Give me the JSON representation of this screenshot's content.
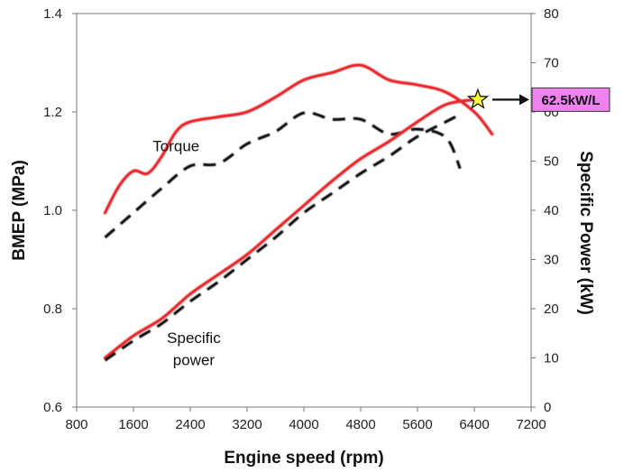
{
  "chart_data": {
    "type": "line",
    "title": "",
    "xlabel": "Engine speed  (rpm)",
    "ylabel": "BMEP (MPa)",
    "y2label": "Specific Power (kW)",
    "xlim": [
      800,
      7200
    ],
    "ylim": [
      0.6,
      1.4
    ],
    "y2lim": [
      0,
      80
    ],
    "grid": false,
    "x_ticks": [
      800,
      1600,
      2400,
      3200,
      4000,
      4800,
      5600,
      6400,
      7200
    ],
    "y_ticks": [
      0.6,
      0.8,
      1.0,
      1.2,
      1.4
    ],
    "y2_ticks": [
      0,
      10,
      20,
      30,
      40,
      50,
      60,
      70,
      80
    ],
    "series": [
      {
        "name": "Torque (red)",
        "axis": "left",
        "color": "#e8262a",
        "style": "solid",
        "x": [
          1200,
          1400,
          1600,
          1800,
          2000,
          2200,
          2400,
          2800,
          3200,
          3600,
          4000,
          4400,
          4800,
          5200,
          5600,
          6000,
          6400,
          6650
        ],
        "values": [
          0.995,
          1.05,
          1.08,
          1.075,
          1.11,
          1.16,
          1.18,
          1.19,
          1.2,
          1.23,
          1.265,
          1.28,
          1.295,
          1.265,
          1.255,
          1.24,
          1.2,
          1.155
        ]
      },
      {
        "name": "Torque (dashed)",
        "axis": "left",
        "color": "#111111",
        "style": "dashed",
        "x": [
          1200,
          1600,
          2000,
          2400,
          2800,
          3200,
          3600,
          4000,
          4400,
          4800,
          5200,
          5600,
          6000,
          6200
        ],
        "values": [
          0.945,
          0.995,
          1.045,
          1.09,
          1.095,
          1.135,
          1.16,
          1.198,
          1.185,
          1.185,
          1.155,
          1.165,
          1.148,
          1.085
        ]
      },
      {
        "name": "Specific power (red)",
        "axis": "right",
        "color": "#e8262a",
        "style": "solid",
        "x": [
          1200,
          1600,
          2000,
          2400,
          2800,
          3200,
          3600,
          4000,
          4400,
          4800,
          5200,
          5600,
          6000,
          6400
        ],
        "values": [
          10,
          14.5,
          18,
          23,
          27,
          31,
          36,
          41,
          46,
          50.5,
          54,
          58,
          61.5,
          62.5
        ]
      },
      {
        "name": "Specific power (dashed)",
        "axis": "right",
        "color": "#111111",
        "style": "dashed",
        "x": [
          1200,
          1600,
          2000,
          2400,
          2800,
          3200,
          3600,
          4000,
          4400,
          4800,
          5200,
          5600,
          6000,
          6200
        ],
        "values": [
          9.5,
          13.5,
          17,
          21.5,
          25.5,
          30,
          34.5,
          39.5,
          43.5,
          47.5,
          51,
          55,
          58,
          59.5
        ]
      }
    ],
    "annotations": [
      {
        "text": "Torque",
        "x": 2200,
        "y": 1.12,
        "axis": "left"
      },
      {
        "text": "Specific",
        "x": 2450,
        "y": 0.73,
        "axis": "left"
      },
      {
        "text": "power",
        "x": 2450,
        "y": 0.685,
        "axis": "left"
      }
    ],
    "callout": {
      "label": "62.5kW/L",
      "marker": "star",
      "x": 6450,
      "value": 62.5,
      "axis": "right",
      "marker_color": "#ffff33",
      "box_color": "#ee82ee"
    }
  }
}
